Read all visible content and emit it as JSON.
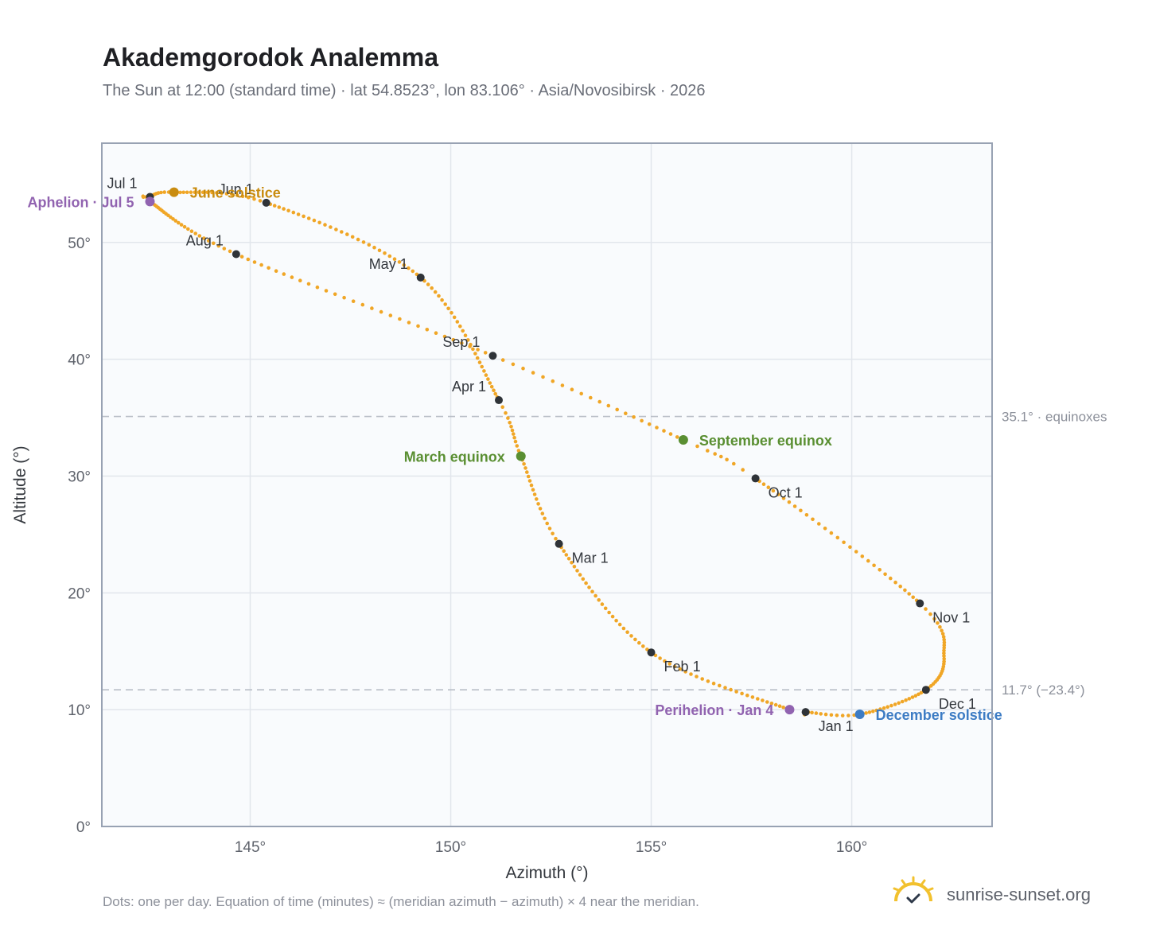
{
  "title": "Akademgorodok Analemma",
  "subtitle": "The Sun at 12:00 (standard time) · lat 54.8523°, lon 83.106° · Asia/Novosibirsk · 2026",
  "footer": "Dots: one per day. Equation of time (minutes) ≈ (meridian azimuth − azimuth) × 4 near the meridian.",
  "brand": "sunrise-sunset.org",
  "colors": {
    "curve": "#f0a626",
    "month_marker": "#2f3338",
    "equinox": "#5a8f32",
    "june_solstice": "#c98c10",
    "december_solstice": "#3d7cc4",
    "apsis": "#9163b0",
    "reference_line": "#b9bec7",
    "plot_bg": "#f9fbfd",
    "grid": "#e2e6ec",
    "axis_border": "#98a2b3"
  },
  "chart_data": {
    "type": "scatter",
    "xlabel": "Azimuth (°)",
    "ylabel": "Altitude (°)",
    "xlim": [
      141.3,
      163.5
    ],
    "ylim": [
      0,
      58.5
    ],
    "x_ticks": [
      145,
      150,
      155,
      160
    ],
    "x_tick_labels": [
      "145°",
      "150°",
      "155°",
      "160°"
    ],
    "y_ticks": [
      0,
      10,
      20,
      30,
      40,
      50
    ],
    "y_tick_labels": [
      "0°",
      "10°",
      "20°",
      "30°",
      "40°",
      "50°"
    ],
    "grid": true,
    "anchors": [
      {
        "day": 1,
        "az": 158.85,
        "alt": 9.8
      },
      {
        "day": 4,
        "az": 158.45,
        "alt": 10.0
      },
      {
        "day": 32,
        "az": 155.0,
        "alt": 14.9
      },
      {
        "day": 60,
        "az": 152.7,
        "alt": 24.2
      },
      {
        "day": 79,
        "az": 151.75,
        "alt": 31.7
      },
      {
        "day": 91,
        "az": 151.2,
        "alt": 36.5
      },
      {
        "day": 121,
        "az": 149.25,
        "alt": 47.0
      },
      {
        "day": 152,
        "az": 145.4,
        "alt": 53.4
      },
      {
        "day": 172,
        "az": 143.1,
        "alt": 54.3
      },
      {
        "day": 182,
        "az": 142.5,
        "alt": 53.9
      },
      {
        "day": 186,
        "az": 142.5,
        "alt": 53.5
      },
      {
        "day": 213,
        "az": 144.65,
        "alt": 49.0
      },
      {
        "day": 244,
        "az": 151.05,
        "alt": 40.3
      },
      {
        "day": 266,
        "az": 155.8,
        "alt": 33.1
      },
      {
        "day": 274,
        "az": 157.6,
        "alt": 29.8
      },
      {
        "day": 305,
        "az": 161.7,
        "alt": 19.1
      },
      {
        "day": 320,
        "az": 162.3,
        "alt": 14.6
      },
      {
        "day": 335,
        "az": 161.85,
        "alt": 11.7
      },
      {
        "day": 355,
        "az": 160.2,
        "alt": 9.6
      },
      {
        "day": 366,
        "az": 158.85,
        "alt": 9.8
      }
    ],
    "reference_lines": [
      {
        "alt": 35.1,
        "label": "35.1° · equinoxes"
      },
      {
        "alt": 11.7,
        "label": "11.7° (−23.4°)"
      }
    ],
    "month_markers": [
      {
        "label": "Jan 1",
        "az": 158.85,
        "alt": 9.8,
        "pos": "below-left"
      },
      {
        "label": "Feb 1",
        "az": 155.0,
        "alt": 14.9,
        "pos": "below-right"
      },
      {
        "label": "Mar 1",
        "az": 152.7,
        "alt": 24.2,
        "pos": "below-right"
      },
      {
        "label": "Apr 1",
        "az": 151.2,
        "alt": 36.5,
        "pos": "above-left"
      },
      {
        "label": "May 1",
        "az": 149.25,
        "alt": 47.0,
        "pos": "above-left"
      },
      {
        "label": "Jun 1",
        "az": 145.4,
        "alt": 53.4,
        "pos": "above-left"
      },
      {
        "label": "Jul 1",
        "az": 142.5,
        "alt": 53.9,
        "pos": "above-left"
      },
      {
        "label": "Aug 1",
        "az": 144.65,
        "alt": 49.0,
        "pos": "above-left"
      },
      {
        "label": "Sep 1",
        "az": 151.05,
        "alt": 40.3,
        "pos": "above-left"
      },
      {
        "label": "Oct 1",
        "az": 157.6,
        "alt": 29.8,
        "pos": "below-right"
      },
      {
        "label": "Nov 1",
        "az": 161.7,
        "alt": 19.1,
        "pos": "below-right"
      },
      {
        "label": "Dec 1",
        "az": 161.85,
        "alt": 11.7,
        "pos": "below-right"
      }
    ],
    "events": [
      {
        "label": "March equinox",
        "az": 151.75,
        "alt": 31.7,
        "color_key": "equinox",
        "side": "left"
      },
      {
        "label": "September equinox",
        "az": 155.8,
        "alt": 33.1,
        "color_key": "equinox",
        "side": "right"
      },
      {
        "label": "June solstice",
        "az": 143.1,
        "alt": 54.3,
        "color_key": "june_solstice",
        "side": "right"
      },
      {
        "label": "December solstice",
        "az": 160.2,
        "alt": 9.6,
        "color_key": "december_solstice",
        "side": "right"
      },
      {
        "label": "Aphelion · Jul 5",
        "az": 142.5,
        "alt": 53.5,
        "color_key": "apsis",
        "side": "left"
      },
      {
        "label": "Perihelion · Jan 4",
        "az": 158.45,
        "alt": 10.0,
        "color_key": "apsis",
        "side": "left"
      }
    ]
  }
}
